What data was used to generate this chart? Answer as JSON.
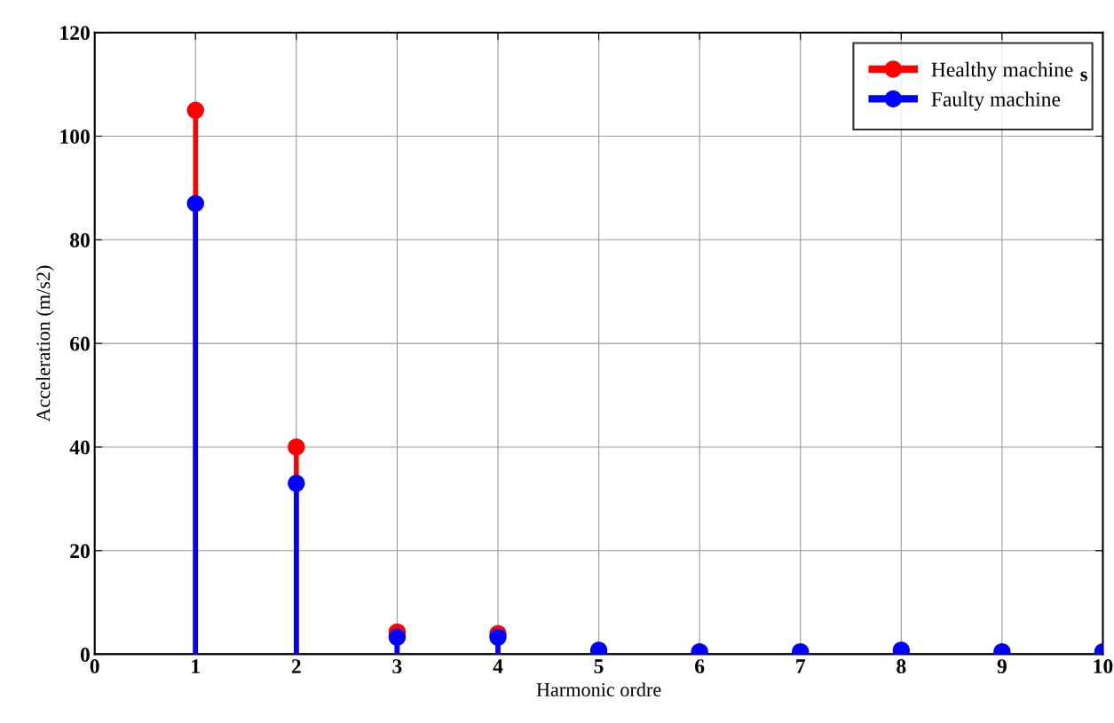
{
  "chart_data": {
    "type": "lollipop",
    "xlabel": "Harmonic ordre",
    "ylabel": "Acceleration (m/s2)",
    "x": [
      1,
      2,
      3,
      4,
      5,
      6,
      7,
      8,
      9,
      10
    ],
    "series": [
      {
        "name": "Healthy machine",
        "color": "#ff0000",
        "values": [
          105,
          40,
          4.3,
          4,
          null,
          null,
          null,
          null,
          null,
          null
        ]
      },
      {
        "name": "Faulty machine",
        "color": "#0000ff",
        "values": [
          87,
          33,
          3.3,
          3.3,
          0.8,
          0.5,
          0.5,
          0.8,
          0.5,
          0.5
        ]
      }
    ],
    "xlim": [
      0,
      10
    ],
    "ylim": [
      0,
      120
    ],
    "xticks": [
      0,
      1,
      2,
      3,
      4,
      5,
      6,
      7,
      8,
      9,
      10
    ],
    "yticks": [
      0,
      20,
      40,
      60,
      80,
      100,
      120
    ],
    "grid": true,
    "legend": "top right",
    "marker": "circle",
    "annotations": [
      "s"
    ]
  }
}
